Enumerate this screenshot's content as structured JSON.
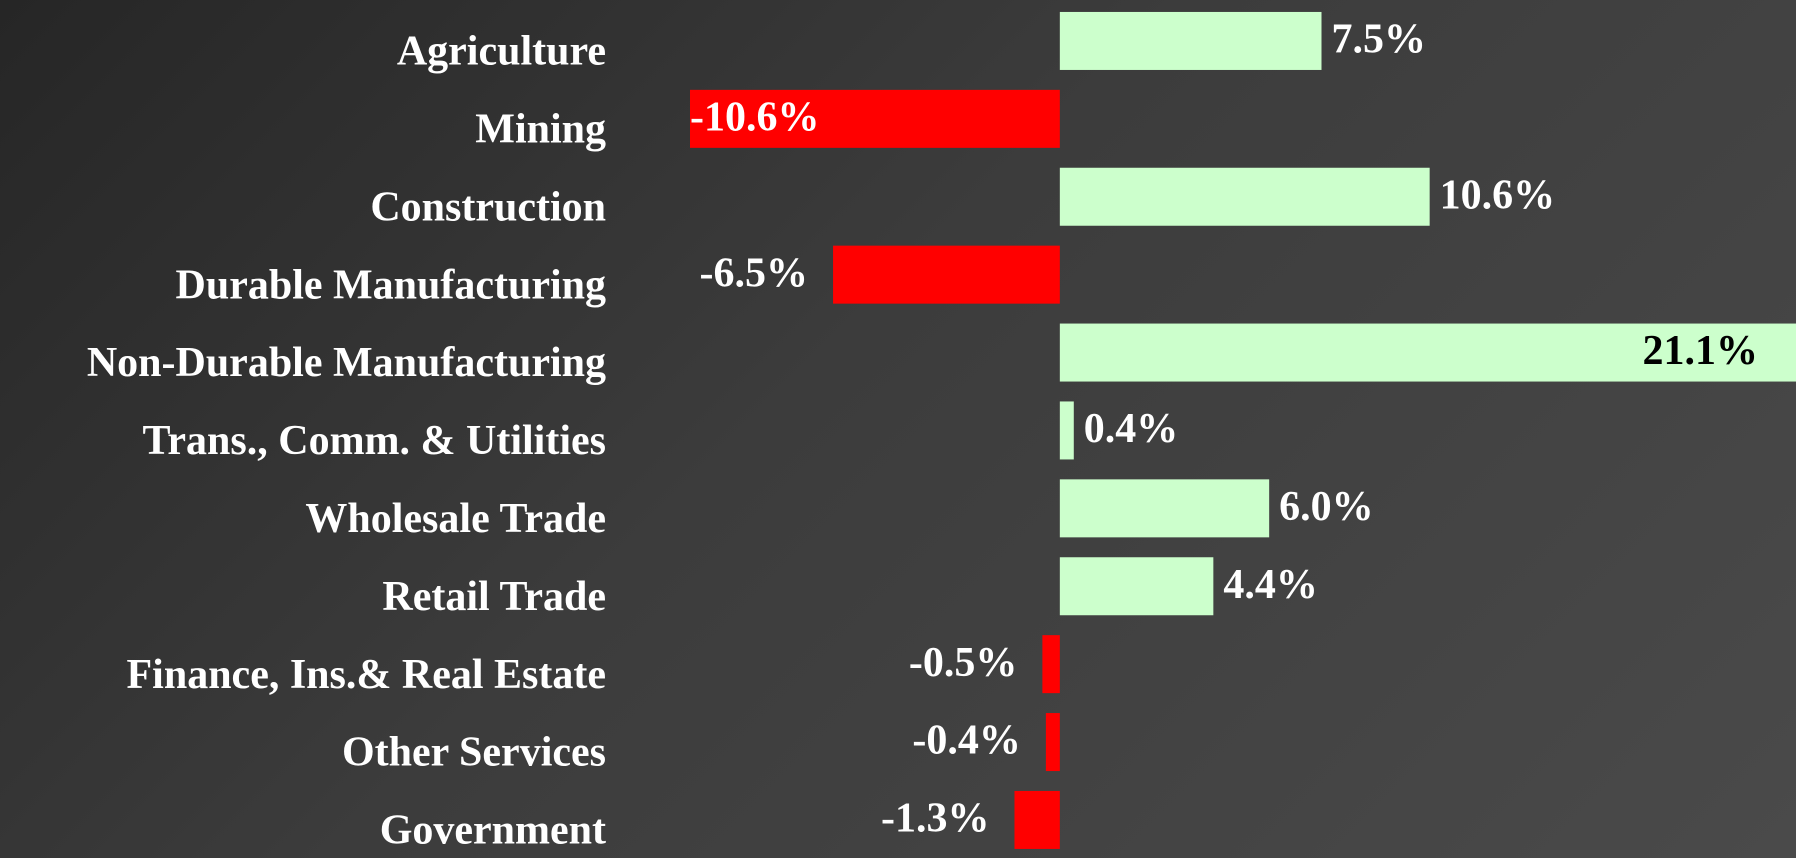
{
  "chart_data": {
    "type": "bar",
    "orientation": "horizontal",
    "categories": [
      "Agriculture",
      "Mining",
      "Construction",
      "Durable Manufacturing",
      "Non-Durable Manufacturing",
      "Trans., Comm. & Utilities",
      "Wholesale Trade",
      "Retail Trade",
      "Finance, Ins.& Real Estate",
      "Other Services",
      "Government"
    ],
    "values": [
      7.5,
      -10.6,
      10.6,
      -6.5,
      21.1,
      0.4,
      6.0,
      4.4,
      -0.5,
      -0.4,
      -1.3
    ],
    "value_labels": [
      "7.5%",
      "-10.6%",
      "10.6%",
      "-6.5%",
      "21.1%",
      "0.4%",
      "6.0%",
      "4.4%",
      "-0.5%",
      "-0.4%",
      "-1.3%"
    ],
    "color_positive": "#ccffcc",
    "color_negative": "#ff0000"
  }
}
